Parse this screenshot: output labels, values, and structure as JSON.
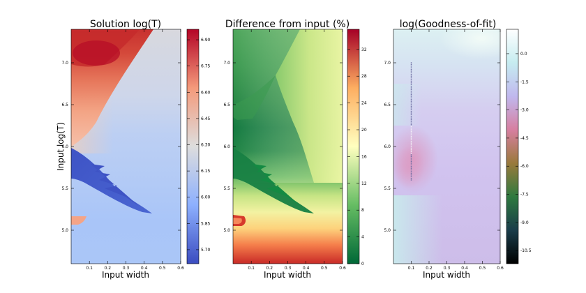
{
  "figure_title": "",
  "chart_data": [
    {
      "type": "heatmap",
      "title": "Solution log(T)",
      "xlabel": "Input width",
      "ylabel": "Input log(T)",
      "xlim": [
        0.0,
        0.6
      ],
      "ylim": [
        4.6,
        7.4
      ],
      "xticks": [
        "0.1",
        "0.2",
        "0.3",
        "0.4",
        "0.5",
        "0.6"
      ],
      "yticks": [
        "5.0",
        "5.5",
        "6.0",
        "6.5",
        "7.0"
      ],
      "colorbar": {
        "range": [
          5.62,
          6.96
        ],
        "ticks": [
          "5.70",
          "5.85",
          "6.00",
          "6.15",
          "6.30",
          "6.45",
          "6.60",
          "6.75",
          "6.90"
        ],
        "colormap": "coolwarm",
        "colors": [
          "#3b4cc0",
          "#8db0fe",
          "#dddddd",
          "#f49a7b",
          "#b40426"
        ]
      }
    },
    {
      "type": "heatmap",
      "title": "Difference from input (%)",
      "xlabel": "Input width",
      "ylabel": "",
      "xlim": [
        0.0,
        0.6
      ],
      "ylim": [
        4.6,
        7.4
      ],
      "xticks": [
        "0.1",
        "0.2",
        "0.3",
        "0.4",
        "0.5",
        "0.6"
      ],
      "yticks": [
        "5.0",
        "5.5",
        "6.0",
        "6.5",
        "7.0"
      ],
      "colorbar": {
        "range": [
          0,
          35
        ],
        "ticks": [
          "0",
          "4",
          "8",
          "12",
          "16",
          "20",
          "24",
          "28",
          "32"
        ],
        "colormap": "RdYlGn_r",
        "colors": [
          "#006837",
          "#66bd63",
          "#ffffbf",
          "#fdae61",
          "#a50026"
        ]
      }
    },
    {
      "type": "heatmap",
      "title": "log(Goodness-of-fit)",
      "xlabel": "Input width",
      "ylabel": "",
      "xlim": [
        0.0,
        0.6
      ],
      "ylim": [
        4.6,
        7.4
      ],
      "xticks": [
        "0.1",
        "0.2",
        "0.3",
        "0.4",
        "0.5",
        "0.6"
      ],
      "yticks": [
        "5.0",
        "5.5",
        "6.0",
        "6.5",
        "7.0"
      ],
      "colorbar": {
        "range": [
          -11.2,
          1.3
        ],
        "ticks": [
          "0.0",
          "-1.5",
          "-3.0",
          "-4.5",
          "-6.0",
          "-7.5",
          "-9.0",
          "-10.5"
        ],
        "colormap": "cubehelix_r",
        "colors": [
          "#000000",
          "#1a3d4a",
          "#2f7a3f",
          "#9a7a3c",
          "#d77fa0",
          "#c0b8ee",
          "#c6ecf0",
          "#ffffff"
        ]
      }
    }
  ]
}
